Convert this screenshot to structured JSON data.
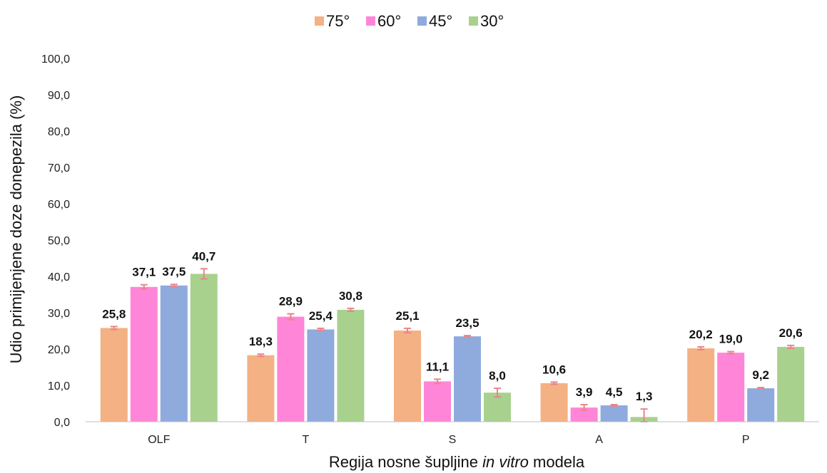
{
  "chart_data": {
    "type": "bar",
    "categories": [
      "OLF",
      "T",
      "S",
      "A",
      "P"
    ],
    "series": [
      {
        "name": "75°",
        "color": "#F4B183",
        "values": [
          25.8,
          18.3,
          25.1,
          10.6,
          20.2
        ],
        "labels": [
          "25,8",
          "18,3",
          "25,1",
          "10,6",
          "20,2"
        ],
        "errors": [
          0.4,
          0.3,
          0.6,
          0.3,
          0.4
        ]
      },
      {
        "name": "60°",
        "color": "#FF85D8",
        "values": [
          37.1,
          28.9,
          11.1,
          3.9,
          19.0
        ],
        "labels": [
          "37,1",
          "28,9",
          "11,1",
          "3,9",
          "19,0"
        ],
        "errors": [
          0.6,
          0.8,
          0.6,
          0.8,
          0.3
        ]
      },
      {
        "name": "45°",
        "color": "#8FAADC",
        "values": [
          37.5,
          25.4,
          23.5,
          4.5,
          9.2
        ],
        "labels": [
          "37,5",
          "25,4",
          "23,5",
          "4,5",
          "9,2"
        ],
        "errors": [
          0.3,
          0.3,
          0.2,
          0.2,
          0.2
        ]
      },
      {
        "name": "30°",
        "color": "#A9D18E",
        "values": [
          40.7,
          30.8,
          8.0,
          1.3,
          20.6
        ],
        "labels": [
          "40,7",
          "30,8",
          "8,0",
          "1,3",
          "20,6"
        ],
        "errors": [
          1.4,
          0.4,
          1.2,
          2.2,
          0.4
        ]
      }
    ],
    "error_bar_color": "#E8858B",
    "ylim": [
      0,
      100
    ],
    "yticks": [
      "0,0",
      "10,0",
      "20,0",
      "30,0",
      "40,0",
      "50,0",
      "60,0",
      "70,0",
      "80,0",
      "90,0",
      "100,0"
    ],
    "ylabel": "Udio primijenjene doze donepezila (%)",
    "xlabel": {
      "before": "Regija nosne šupljine ",
      "italic": "in vitro",
      "after": " modela"
    },
    "legend_position": "top-center",
    "grid": false
  }
}
